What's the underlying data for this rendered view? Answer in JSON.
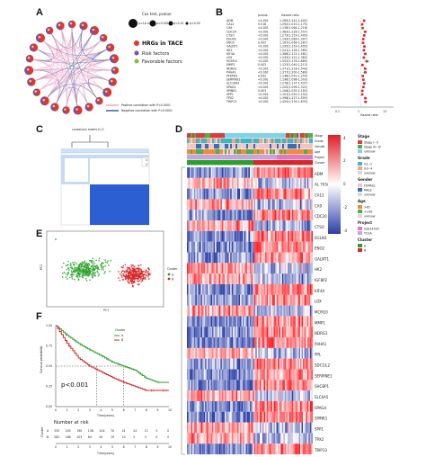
{
  "panels": {
    "A": {
      "label": "A",
      "legend_title": "Cox test, pvalue",
      "pvalue_levels": [
        "p<1e-04",
        "p<0.001",
        "p<0.01",
        "p<0.05"
      ],
      "legend_items": [
        "HRGs in TACE",
        "Risk factors",
        "Favorable factors"
      ],
      "correlation_items": [
        "Positive correlation with P<0.0001",
        "Negative correlation with P<0.0001"
      ],
      "colors": {
        "hrg": "#e8332d",
        "risk": "#7b4fa0",
        "favorable": "#7fc241",
        "pos": "#f2a7c5",
        "neg": "#3b5fa8"
      }
    },
    "B": {
      "label": "B",
      "col_headers": [
        "pvalue",
        "Hazard ratio"
      ],
      "genes": [
        "ADM",
        "CA12",
        "CA9",
        "CDC20",
        "CTSO",
        "EGLN3",
        "ENO2",
        "GALNT1",
        "HK2",
        "KIF4A",
        "LOX",
        "MCM10",
        "MMP1",
        "NDRG1",
        "P4HA1",
        "PFKFB4",
        "SERPINE1",
        "SLC16A3",
        "SPAG4",
        "SPINK1",
        "SPP1",
        "TPX2",
        "TRIP13"
      ],
      "pvalues": [
        "<0.001",
        "0.018",
        "<0.001",
        "<0.001",
        "<0.001",
        "<0.001",
        "0.002",
        "<0.001",
        "<0.001",
        "<0.001",
        "<0.001",
        "<0.001",
        "0.003",
        "<0.001",
        "<0.001",
        "0.002",
        "<0.001",
        "<0.001",
        "<0.001",
        "0.003",
        "<0.001",
        "<0.001",
        "<0.001"
      ],
      "hr_text": [
        "1.265(1.141-1.402)",
        "1.092(1.015-1.175)",
        "1.138(1.064-1.218)",
        "1.383(1.228-1.557)",
        "1.273(1.153-1.405)",
        "1.193(1.089-1.307)",
        "1.167(1.058-1.287)",
        "1.295(1.153-1.455)",
        "1.241(1.128-1.365)",
        "1.386(1.215-1.581)",
        "1.245(1.121-1.383)",
        "1.552(1.278-1.885)",
        "1.123(1.040-1.213)",
        "1.371(1.218-1.543)",
        "1.377(1.200-1.580)",
        "1.148(1.051-1.254)",
        "1.196(1.098-1.303)",
        "1.278(1.137-1.437)",
        "1.205(1.099-1.322)",
        "1.106(1.035-1.183)",
        "1.101(1.052-1.152)",
        "1.398(1.227-1.593)",
        "1.420(1.235-1.633)"
      ],
      "hr": [
        1.265,
        1.092,
        1.138,
        1.383,
        1.273,
        1.193,
        1.167,
        1.295,
        1.241,
        1.386,
        1.245,
        1.552,
        1.123,
        1.371,
        1.377,
        1.148,
        1.196,
        1.278,
        1.205,
        1.106,
        1.101,
        1.398,
        1.42
      ],
      "axis_label": "Hazard ratio",
      "axis_ticks": [
        "0.1",
        "1",
        "12"
      ]
    },
    "C": {
      "label": "C",
      "title": "consensus matrix k=2",
      "legend": [
        "1",
        "2"
      ]
    },
    "D": {
      "label": "D",
      "tracks": [
        "Stage",
        "Grade",
        "Gender",
        "Age",
        "Project",
        "Cluster"
      ],
      "genes": [
        "ADM",
        "AL 7h5A1",
        "CA12",
        "CA9",
        "CDC20",
        "CTSO",
        "EGLN3",
        "ENO2",
        "GALNT1",
        "HK2",
        "KIF4A",
        "KIF4A",
        "LOX",
        "MCM10",
        "MMP1",
        "NDRG1",
        "P4HA1",
        "PFKFB4",
        "PPL",
        "SERPINE1",
        "SLC16A3",
        "SHCBP1",
        "SPAG4",
        "SPINK1",
        "SPP1",
        "TPX2",
        "TRIP13"
      ],
      "gene_labels": [
        "ADM",
        "AL 7h5A1",
        "CA12",
        "CA9",
        "CDC20",
        "CTSO",
        "EGLN3",
        "ENO2",
        "GALNT1",
        "HK2",
        "IGF8P2",
        "KIF4A",
        "LOX",
        "MCM10",
        "MMP1",
        "NDRG1",
        "P4HA1",
        "PPL",
        "SDC1/L2",
        "SERPINE1",
        "SHCBP1",
        "SLC6A5",
        "SPAG4",
        "SPINK1",
        "SPP1",
        "TPX2",
        "TRIP13"
      ],
      "legend": {
        "scale": [
          "4",
          "2",
          "0",
          "-2",
          "-4"
        ],
        "stage_title": "Stage",
        "stage": [
          "Stage I~II",
          "Stage III~IV",
          "unknow"
        ],
        "grade_title": "Grade",
        "grade": [
          "G1~2",
          "G3~4",
          "unknow"
        ],
        "gender_title": "Gender",
        "gender": [
          "FEMALE",
          "MALE",
          "unknow"
        ],
        "age_title": "Age",
        "age": [
          ">65",
          "<=65",
          "unknow"
        ],
        "project_title": "Project",
        "project": [
          "GSE14520",
          "TCGA"
        ],
        "cluster_title": "Cluster",
        "cluster": [
          "A",
          "B"
        ]
      },
      "colors": {
        "stage": [
          "#e03b3b",
          "#4db04a",
          "#7fd1ea"
        ],
        "grade": [
          "#41b6c4",
          "#f4a582",
          "#d9d9d9"
        ],
        "gender": [
          "#f4c3c8",
          "#3b6cb7",
          "#d9d9d9"
        ],
        "age": [
          "#f08c3c",
          "#4db04a",
          "#d9d9d9"
        ],
        "project": [
          "#e377c2",
          "#c7a3e0"
        ],
        "cluster": [
          "#2ca02c",
          "#d62728"
        ],
        "high": "#e01e27",
        "mid": "#ffffff",
        "low": "#2c3da8"
      }
    },
    "E": {
      "label": "E",
      "xlabel": "PC1",
      "ylabel": "PC2",
      "legend_title": "Cluster",
      "legend": [
        "A",
        "B"
      ],
      "colors": [
        "#2ca02c",
        "#d62728"
      ]
    },
    "F": {
      "label": "F",
      "legend_title": "Cluster",
      "legend": [
        "A",
        "B"
      ],
      "ylabel": "Survival probability",
      "xlabel": "Time(years)",
      "pvalue": "p<0.001",
      "y_ticks": [
        "1.00",
        "0.75",
        "0.50",
        "0.25",
        "0.00"
      ],
      "x_ticks": [
        "0",
        "1",
        "2",
        "3",
        "4",
        "5",
        "6",
        "7",
        "8",
        "9",
        "10"
      ],
      "risk_title": "Number at risk",
      "risk_rows": [
        {
          "name": "A",
          "counts": [
            "335",
            "245",
            "190",
            "138",
            "104",
            "70",
            "41",
            "24",
            "11",
            "5",
            "0"
          ]
        },
        {
          "name": "B",
          "counts": [
            "262",
            "188",
            "103",
            "64",
            "40",
            "19",
            "10",
            "5",
            "3",
            "0",
            "0"
          ]
        }
      ],
      "risk_ylabel": "Cluster",
      "colors": [
        "#2ca02c",
        "#d62728"
      ]
    }
  },
  "chart_data": [
    {
      "type": "scatter",
      "panel": "B",
      "title": "",
      "xlabel": "Hazard ratio",
      "categories": [
        "ADM",
        "CA12",
        "CA9",
        "CDC20",
        "CTSO",
        "EGLN3",
        "ENO2",
        "GALNT1",
        "HK2",
        "KIF4A",
        "LOX",
        "MCM10",
        "MMP1",
        "NDRG1",
        "P4HA1",
        "PFKFB4",
        "SERPINE1",
        "SLC16A3",
        "SPAG4",
        "SPINK1",
        "SPP1",
        "TPX2",
        "TRIP13"
      ],
      "values": [
        1.265,
        1.092,
        1.138,
        1.383,
        1.273,
        1.193,
        1.167,
        1.295,
        1.241,
        1.386,
        1.245,
        1.552,
        1.123,
        1.371,
        1.377,
        1.148,
        1.196,
        1.278,
        1.205,
        1.106,
        1.101,
        1.398,
        1.42
      ]
    },
    {
      "type": "line",
      "panel": "F",
      "xlabel": "Time(years)",
      "ylabel": "Survival probability",
      "ylim": [
        0,
        1
      ],
      "xlim": [
        0,
        10
      ],
      "x": [
        0,
        1,
        2,
        3,
        4,
        5,
        6,
        7,
        8,
        9,
        10
      ],
      "series": [
        {
          "name": "A",
          "values": [
            1.0,
            0.88,
            0.78,
            0.7,
            0.63,
            0.55,
            0.5,
            0.45,
            0.35,
            0.3,
            0.3
          ]
        },
        {
          "name": "B",
          "values": [
            1.0,
            0.78,
            0.6,
            0.5,
            0.43,
            0.36,
            0.3,
            0.25,
            0.2,
            0.2,
            0.2
          ]
        }
      ]
    }
  ]
}
